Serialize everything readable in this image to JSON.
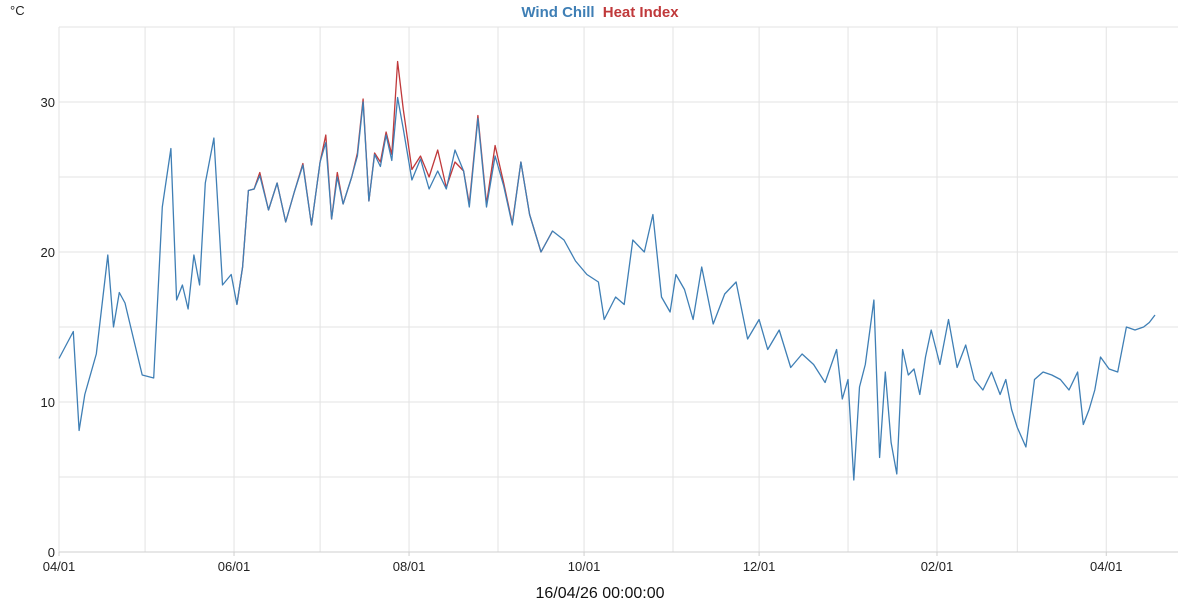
{
  "legend": {
    "series_a": "Wind Chill",
    "series_b": "Heat Index"
  },
  "footer_timestamp": "16/04/26 00:00:00",
  "colors": {
    "wind_chill": "#3f7fb5",
    "heat_index": "#c0393b",
    "grid": "#e3e3e3"
  },
  "chart_data": {
    "type": "line",
    "unit": "°C",
    "ylim": [
      0,
      35
    ],
    "y_ticks": [
      0,
      10,
      20,
      30
    ],
    "x_tick_labels": [
      "04/01",
      "06/01",
      "08/01",
      "10/01",
      "12/01",
      "02/01",
      "04/01"
    ],
    "x_tick_dates": [
      "2025-04-01",
      "2025-06-01",
      "2025-08-01",
      "2025-10-01",
      "2025-12-01",
      "2026-02-01",
      "2026-04-01"
    ],
    "x_range": [
      "2025-04-01",
      "2026-04-26"
    ],
    "grid": true,
    "series": [
      {
        "name": "Wind Chill",
        "color": "#3f7fb5",
        "x": [
          "2025-04-01",
          "2025-04-06",
          "2025-04-08",
          "2025-04-10",
          "2025-04-14",
          "2025-04-18",
          "2025-04-20",
          "2025-04-22",
          "2025-04-24",
          "2025-04-26",
          "2025-04-30",
          "2025-05-04",
          "2025-05-07",
          "2025-05-10",
          "2025-05-12",
          "2025-05-14",
          "2025-05-16",
          "2025-05-18",
          "2025-05-20",
          "2025-05-22",
          "2025-05-25",
          "2025-05-28",
          "2025-05-31",
          "2025-06-02",
          "2025-06-04",
          "2025-06-06",
          "2025-06-08",
          "2025-06-10",
          "2025-06-13",
          "2025-06-16",
          "2025-06-19",
          "2025-06-22",
          "2025-06-25",
          "2025-06-28",
          "2025-07-01",
          "2025-07-03",
          "2025-07-05",
          "2025-07-07",
          "2025-07-09",
          "2025-07-12",
          "2025-07-14",
          "2025-07-16",
          "2025-07-18",
          "2025-07-20",
          "2025-07-22",
          "2025-07-24",
          "2025-07-26",
          "2025-07-28",
          "2025-07-30",
          "2025-08-02",
          "2025-08-05",
          "2025-08-08",
          "2025-08-11",
          "2025-08-14",
          "2025-08-17",
          "2025-08-20",
          "2025-08-22",
          "2025-08-25",
          "2025-08-28",
          "2025-08-31",
          "2025-09-03",
          "2025-09-06",
          "2025-09-09",
          "2025-09-12",
          "2025-09-16",
          "2025-09-20",
          "2025-09-24",
          "2025-09-28",
          "2025-10-02",
          "2025-10-06",
          "2025-10-08",
          "2025-10-12",
          "2025-10-15",
          "2025-10-18",
          "2025-10-22",
          "2025-10-25",
          "2025-10-28",
          "2025-10-31",
          "2025-11-02",
          "2025-11-05",
          "2025-11-08",
          "2025-11-11",
          "2025-11-15",
          "2025-11-19",
          "2025-11-23",
          "2025-11-27",
          "2025-12-01",
          "2025-12-04",
          "2025-12-08",
          "2025-12-12",
          "2025-12-16",
          "2025-12-20",
          "2025-12-24",
          "2025-12-28",
          "2025-12-30",
          "2026-01-01",
          "2026-01-03",
          "2026-01-05",
          "2026-01-07",
          "2026-01-10",
          "2026-01-12",
          "2026-01-14",
          "2026-01-16",
          "2026-01-18",
          "2026-01-20",
          "2026-01-22",
          "2026-01-24",
          "2026-01-26",
          "2026-01-28",
          "2026-01-30",
          "2026-02-02",
          "2026-02-05",
          "2026-02-08",
          "2026-02-11",
          "2026-02-14",
          "2026-02-17",
          "2026-02-20",
          "2026-02-23",
          "2026-02-25",
          "2026-02-27",
          "2026-03-01",
          "2026-03-04",
          "2026-03-07",
          "2026-03-10",
          "2026-03-13",
          "2026-03-16",
          "2026-03-19",
          "2026-03-22",
          "2026-03-24",
          "2026-03-26",
          "2026-03-28",
          "2026-03-30",
          "2026-04-02",
          "2026-04-05",
          "2026-04-08",
          "2026-04-11",
          "2026-04-14",
          "2026-04-16",
          "2026-04-18"
        ],
        "values": [
          12.9,
          14.7,
          8.1,
          10.5,
          13.2,
          19.8,
          15.0,
          17.3,
          16.6,
          15.0,
          11.8,
          11.6,
          23.0,
          26.9,
          16.8,
          17.8,
          16.2,
          19.8,
          17.8,
          24.6,
          27.6,
          17.8,
          18.5,
          16.5,
          19.0,
          24.1,
          24.2,
          25.1,
          22.8,
          24.6,
          22.0,
          24.0,
          25.8,
          21.8,
          26.0,
          27.3,
          22.2,
          25.0,
          23.2,
          25.0,
          26.4,
          30.0,
          23.4,
          26.5,
          25.7,
          27.8,
          26.1,
          30.3,
          28.2,
          24.8,
          26.2,
          24.2,
          25.4,
          24.2,
          26.8,
          25.4,
          23.0,
          28.9,
          23.0,
          26.4,
          24.4,
          21.8,
          26.0,
          22.5,
          20.0,
          21.4,
          20.8,
          19.4,
          18.5,
          18.0,
          15.5,
          17.0,
          16.5,
          20.8,
          20.0,
          22.5,
          17.0,
          16.0,
          18.5,
          17.5,
          15.5,
          19.0,
          15.2,
          17.2,
          18.0,
          14.2,
          15.5,
          13.5,
          14.8,
          12.3,
          13.2,
          12.5,
          11.3,
          13.5,
          10.2,
          11.5,
          4.8,
          11.0,
          12.5,
          16.8,
          6.3,
          12.0,
          7.3,
          5.2,
          13.5,
          11.8,
          12.2,
          10.5,
          13.0,
          14.8,
          12.5,
          15.5,
          12.3,
          13.8,
          11.5,
          10.8,
          12.0,
          10.5,
          11.5,
          9.5,
          8.3,
          7.0,
          11.5,
          12.0,
          11.8,
          11.5,
          10.8,
          12.0,
          8.5,
          9.5,
          10.8,
          13.0,
          12.2,
          12.0,
          15.0,
          14.8,
          15.0,
          15.3,
          15.8
        ]
      },
      {
        "name": "Heat Index",
        "color": "#c0393b",
        "x": [
          "2025-06-02",
          "2025-06-04",
          "2025-06-06",
          "2025-06-08",
          "2025-06-10",
          "2025-06-13",
          "2025-06-16",
          "2025-06-19",
          "2025-06-22",
          "2025-06-25",
          "2025-06-28",
          "2025-07-01",
          "2025-07-03",
          "2025-07-05",
          "2025-07-07",
          "2025-07-09",
          "2025-07-12",
          "2025-07-14",
          "2025-07-16",
          "2025-07-18",
          "2025-07-20",
          "2025-07-22",
          "2025-07-24",
          "2025-07-26",
          "2025-07-28",
          "2025-07-30",
          "2025-08-02",
          "2025-08-05",
          "2025-08-08",
          "2025-08-11",
          "2025-08-14",
          "2025-08-17",
          "2025-08-20",
          "2025-08-22",
          "2025-08-25",
          "2025-08-28",
          "2025-08-31",
          "2025-09-03",
          "2025-09-06",
          "2025-09-09",
          "2025-09-12",
          "2025-09-16",
          "2025-09-20"
        ],
        "values": [
          16.5,
          19.0,
          24.1,
          24.2,
          25.3,
          22.8,
          24.6,
          22.0,
          24.0,
          25.9,
          21.8,
          26.0,
          27.8,
          22.2,
          25.3,
          23.2,
          25.0,
          26.6,
          30.2,
          23.4,
          26.6,
          26.0,
          28.0,
          26.5,
          32.7,
          29.5,
          25.5,
          26.4,
          25.0,
          26.8,
          24.3,
          26.0,
          25.4,
          23.2,
          29.1,
          23.2,
          27.1,
          24.6,
          21.9,
          26.0,
          22.5,
          20.0,
          21.4
        ]
      }
    ]
  }
}
